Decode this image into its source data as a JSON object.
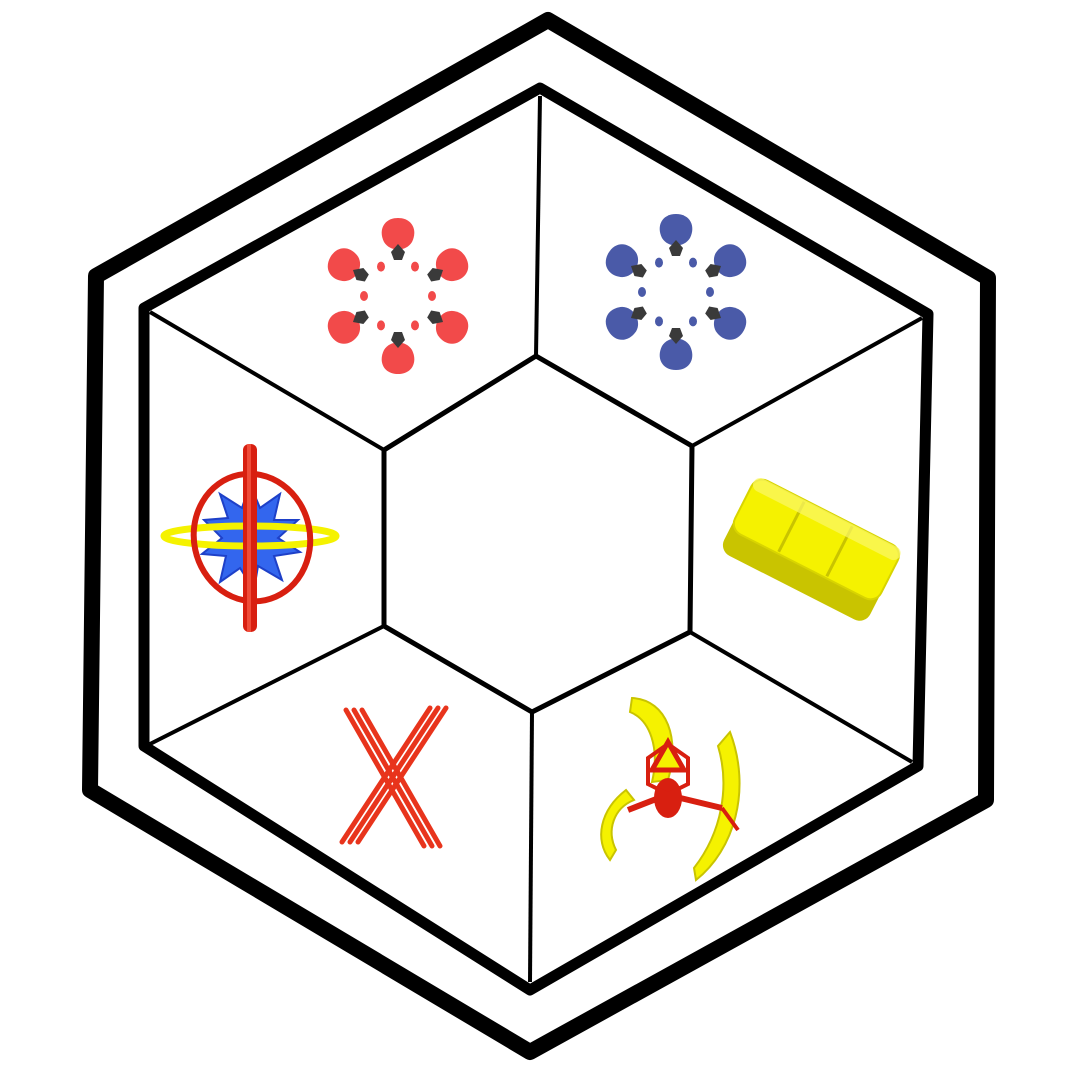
{
  "colors": {
    "background": "#ffffff",
    "frame": "#000000",
    "red": "#f24a4a",
    "red_dark": "#d81f10",
    "blue": "#4a5aa8",
    "bright_blue": "#3366ee",
    "yellow": "#f5f200",
    "yellow_dark": "#c9c400",
    "grey": "#3a3a3a"
  },
  "panels": [
    {
      "name": "top-left",
      "icon": "red-lobe-cluster-icon"
    },
    {
      "name": "top-right",
      "icon": "blue-lobe-cluster-icon"
    },
    {
      "name": "right",
      "icon": "yellow-slab-icon"
    },
    {
      "name": "bottom-right",
      "icon": "yellow-blade-rotor-icon"
    },
    {
      "name": "bottom-left",
      "icon": "red-x-bundle-icon"
    },
    {
      "name": "left",
      "icon": "gyroscope-rings-icon"
    }
  ]
}
